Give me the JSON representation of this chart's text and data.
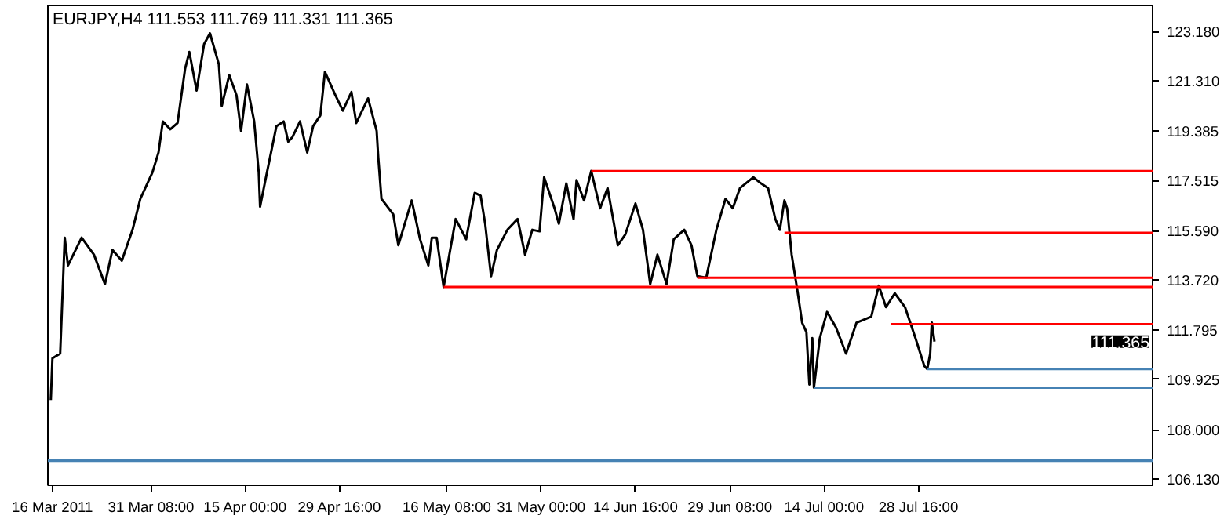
{
  "chart_data": {
    "type": "line",
    "title": "EURJPY,H4  111.553 111.769 111.331 111.365",
    "xlim": [
      "2011-03-15T07:00",
      "2011-09-03T02:00"
    ],
    "ylim": [
      105.89,
      124.18
    ],
    "xticks": [
      {
        "value": "2011-03-16T00:00",
        "label": "16 Mar 2011"
      },
      {
        "value": "2011-03-31T08:00",
        "label": "31 Mar 08:00"
      },
      {
        "value": "2011-04-15T00:00",
        "label": "15 Apr 00:00"
      },
      {
        "value": "2011-04-29T16:00",
        "label": "29 Apr 16:00"
      },
      {
        "value": "2011-05-16T08:00",
        "label": "16 May 08:00"
      },
      {
        "value": "2011-05-31T00:00",
        "label": "31 May 00:00"
      },
      {
        "value": "2011-06-14T16:00",
        "label": "14 Jun 16:00"
      },
      {
        "value": "2011-06-29T08:00",
        "label": "29 Jun 08:00"
      },
      {
        "value": "2011-07-14T00:00",
        "label": "14 Jul 00:00"
      },
      {
        "value": "2011-07-28T16:00",
        "label": "28 Jul 16:00"
      }
    ],
    "yticks": [
      {
        "value": 106.13,
        "label": "106.130"
      },
      {
        "value": 108.0,
        "label": "108.000"
      },
      {
        "value": 109.925,
        "label": "109.925"
      },
      {
        "value": 111.795,
        "label": "111.795"
      },
      {
        "value": 113.72,
        "label": "113.720"
      },
      {
        "value": 115.59,
        "label": "115.590"
      },
      {
        "value": 117.515,
        "label": "117.515"
      },
      {
        "value": 119.385,
        "label": "119.385"
      },
      {
        "value": 121.31,
        "label": "121.310"
      },
      {
        "value": 123.18,
        "label": "123.180"
      }
    ],
    "grid": false,
    "marker": "none",
    "line_style": "solid",
    "annotations": [
      "111.365"
    ],
    "ref_lines": [
      {
        "axis": "y",
        "value": 106.84,
        "color": "#4682b4"
      }
    ],
    "series": [
      {
        "color": "#000000",
        "x": [
          "2011-03-15T18:00",
          "2011-03-16T00:00",
          "2011-03-17T05:00",
          "2011-03-17T22:00",
          "2011-03-18T10:00",
          "2011-03-20T13:00",
          "2011-03-22T11:00",
          "2011-03-24T04:00",
          "2011-03-25T08:00",
          "2011-03-26T19:00",
          "2011-03-28T11:00",
          "2011-03-29T16:00",
          "2011-03-31T13:00",
          "2011-04-01T12:00",
          "2011-04-02T04:00",
          "2011-04-03T08:00",
          "2011-04-04T11:00",
          "2011-04-05T15:00",
          "2011-04-06T07:00",
          "2011-04-07T10:00",
          "2011-04-08T14:00",
          "2011-04-09T12:00",
          "2011-04-10T21:00",
          "2011-04-11T08:00",
          "2011-04-12T12:00",
          "2011-04-13T15:00",
          "2011-04-14T08:00",
          "2011-04-15T06:00",
          "2011-04-16T09:00",
          "2011-04-17T02:00",
          "2011-04-17T07:00",
          "2011-04-18T05:00",
          "2011-04-19T20:00",
          "2011-04-20T23:00",
          "2011-04-21T16:00",
          "2011-04-22T08:00",
          "2011-04-23T12:00",
          "2011-04-24T15:00",
          "2011-04-25T13:00",
          "2011-04-26T16:00",
          "2011-04-27T09:00",
          "2011-04-29T00:00",
          "2011-04-30T04:00",
          "2011-05-01T12:00",
          "2011-05-02T06:00",
          "2011-05-04T02:00",
          "2011-05-05T10:00",
          "2011-05-05T16:00",
          "2011-05-06T04:00",
          "2011-05-08T00:00",
          "2011-05-08T19:00",
          "2011-05-10T21:00",
          "2011-05-12T04:00",
          "2011-05-13T11:00",
          "2011-05-14T00:00",
          "2011-05-14T18:00",
          "2011-05-15T20:00",
          "2011-05-17T17:00",
          "2011-05-19T08:00",
          "2011-05-20T16:00",
          "2011-05-21T14:00",
          "2011-05-22T07:00",
          "2011-05-23T05:00",
          "2011-05-24T03:00",
          "2011-05-25T18:00",
          "2011-05-27T08:00",
          "2011-05-28T12:00",
          "2011-05-29T15:00",
          "2011-05-30T18:00",
          "2011-05-31T11:00",
          "2011-06-02T02:00",
          "2011-06-02T18:00",
          "2011-06-03T22:00",
          "2011-06-05T01:00",
          "2011-06-05T12:00",
          "2011-06-06T16:00",
          "2011-06-07T19:00",
          "2011-06-09T04:00",
          "2011-06-10T08:00",
          "2011-06-11T22:00",
          "2011-06-13T02:00",
          "2011-06-14T16:00",
          "2011-06-15T20:00",
          "2011-06-16T23:00",
          "2011-06-18T02:00",
          "2011-06-19T12:00",
          "2011-06-20T15:00",
          "2011-06-22T06:00",
          "2011-06-23T09:00",
          "2011-06-24T07:00",
          "2011-06-25T16:00",
          "2011-06-27T06:00",
          "2011-06-28T16:00",
          "2011-06-29T19:00",
          "2011-06-30T22:00",
          "2011-07-03T00:00",
          "2011-07-04T04:00",
          "2011-07-05T07:00",
          "2011-07-06T10:00",
          "2011-07-07T03:00",
          "2011-07-07T20:00",
          "2011-07-08T06:00",
          "2011-07-08T23:00",
          "2011-07-09T21:00",
          "2011-07-10T14:00",
          "2011-07-11T06:00",
          "2011-07-11T17:00",
          "2011-07-12T04:00",
          "2011-07-12T10:00",
          "2011-07-13T08:00",
          "2011-07-14T11:00",
          "2011-07-15T20:00",
          "2011-07-17T10:00",
          "2011-07-19T01:00",
          "2011-07-21T08:00",
          "2011-07-22T12:00",
          "2011-07-23T15:00",
          "2011-07-25T00:00",
          "2011-07-26T14:00",
          "2011-07-28T05:00",
          "2011-07-29T14:00",
          "2011-07-30T01:00",
          "2011-07-30T12:00",
          "2011-07-30T18:00",
          "2011-07-31T04:00"
        ],
        "values": [
          109.14,
          110.73,
          110.91,
          115.33,
          114.27,
          115.33,
          114.68,
          113.56,
          114.86,
          114.45,
          115.63,
          116.81,
          117.81,
          118.58,
          119.76,
          119.46,
          119.7,
          121.76,
          122.41,
          120.94,
          122.71,
          123.12,
          121.94,
          120.35,
          121.53,
          120.76,
          119.4,
          121.17,
          119.76,
          117.81,
          116.51,
          117.63,
          119.58,
          119.76,
          118.99,
          119.17,
          119.76,
          118.58,
          119.58,
          119.99,
          121.65,
          120.76,
          120.17,
          120.88,
          119.7,
          120.64,
          119.4,
          118.4,
          116.81,
          116.22,
          115.04,
          116.75,
          115.27,
          114.27,
          115.33,
          115.33,
          113.45,
          116.04,
          115.27,
          117.04,
          116.93,
          115.86,
          113.86,
          114.86,
          115.63,
          116.04,
          114.68,
          115.63,
          115.57,
          117.63,
          116.45,
          115.86,
          117.4,
          116.04,
          117.52,
          116.75,
          117.87,
          116.45,
          117.22,
          115.04,
          115.45,
          116.63,
          115.63,
          113.56,
          114.68,
          113.56,
          115.27,
          115.63,
          115.04,
          113.86,
          113.8,
          115.63,
          116.81,
          116.45,
          117.22,
          117.63,
          117.4,
          117.22,
          116.04,
          115.63,
          116.75,
          116.45,
          114.68,
          113.27,
          112.09,
          111.73,
          109.73,
          111.5,
          109.61,
          111.5,
          112.5,
          111.91,
          110.91,
          112.09,
          112.32,
          113.5,
          112.68,
          113.21,
          112.68,
          111.5,
          110.44,
          110.32,
          110.91,
          112.09,
          111.365
        ]
      },
      {
        "type": "line",
        "color": "#ff0000",
        "x": [
          "2011-06-07T19:00",
          "2011-09-03T02:00"
        ],
        "values": [
          117.87,
          117.87
        ]
      },
      {
        "type": "line",
        "color": "#ff0000",
        "x": [
          "2011-07-07T20:00",
          "2011-09-03T02:00"
        ],
        "values": [
          115.51,
          115.51
        ]
      },
      {
        "type": "line",
        "color": "#ff0000",
        "x": [
          "2011-06-24T07:00",
          "2011-09-03T02:00"
        ],
        "values": [
          113.8,
          113.8
        ]
      },
      {
        "type": "line",
        "color": "#ff0000",
        "x": [
          "2011-05-15T20:00",
          "2011-09-03T02:00"
        ],
        "values": [
          113.45,
          113.45
        ]
      },
      {
        "type": "line",
        "color": "#ff0000",
        "x": [
          "2011-07-24T08:00",
          "2011-09-03T02:00"
        ],
        "values": [
          112.03,
          112.03
        ]
      },
      {
        "type": "line",
        "color": "#4682b4",
        "x": [
          "2011-07-30T01:00",
          "2011-09-03T02:00"
        ],
        "values": [
          110.32,
          110.32
        ]
      },
      {
        "type": "line",
        "color": "#4682b4",
        "x": [
          "2011-07-12T10:00",
          "2011-09-03T02:00"
        ],
        "values": [
          109.61,
          109.61
        ]
      }
    ]
  }
}
